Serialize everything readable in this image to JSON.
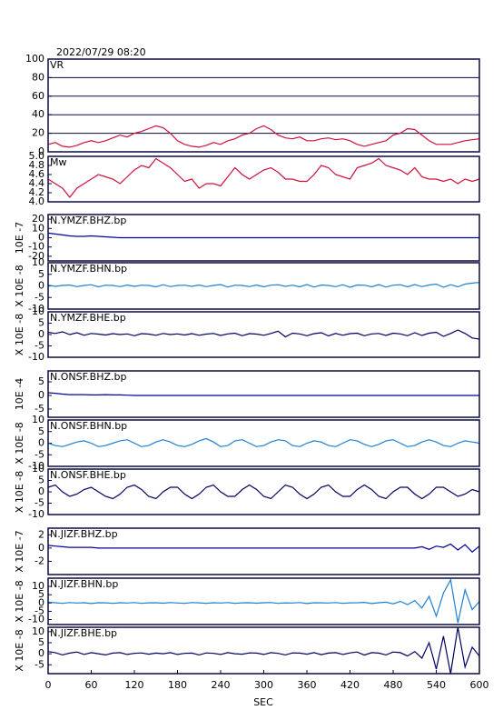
{
  "chart_data": {
    "type": "line",
    "title": "2022/07/29 08:20",
    "xlabel": "SEC",
    "xlim": [
      0,
      600
    ],
    "xticks": [
      0,
      60,
      120,
      180,
      240,
      300,
      360,
      420,
      480,
      540,
      600
    ],
    "x": [
      0,
      10,
      20,
      30,
      40,
      50,
      60,
      70,
      80,
      90,
      100,
      110,
      120,
      130,
      140,
      150,
      160,
      170,
      180,
      190,
      200,
      210,
      220,
      230,
      240,
      250,
      260,
      270,
      280,
      290,
      300,
      310,
      320,
      330,
      340,
      350,
      360,
      370,
      380,
      390,
      400,
      410,
      420,
      430,
      440,
      450,
      460,
      470,
      480,
      490,
      500,
      510,
      520,
      530,
      540,
      550,
      560,
      570,
      580,
      590,
      600
    ],
    "panels": [
      {
        "name": "VR",
        "color": "#d0103a",
        "grid": true,
        "ylim": [
          0,
          100
        ],
        "yticks": [
          0,
          20,
          40,
          60,
          80,
          100
        ],
        "values": [
          8,
          10,
          6,
          5,
          7,
          10,
          12,
          10,
          12,
          15,
          18,
          16,
          20,
          22,
          25,
          28,
          26,
          20,
          12,
          8,
          6,
          5,
          7,
          10,
          8,
          12,
          14,
          18,
          20,
          25,
          28,
          24,
          18,
          15,
          14,
          16,
          12,
          12,
          14,
          15,
          13,
          14,
          12,
          8,
          6,
          8,
          10,
          12,
          18,
          20,
          25,
          24,
          18,
          12,
          8,
          8,
          8,
          10,
          12,
          13,
          14
        ]
      },
      {
        "name": "Mw",
        "color": "#d0103a",
        "grid": false,
        "ylim": [
          4.0,
          5.0
        ],
        "yticks": [
          {
            "value": 4,
            "label": "4.0"
          },
          4.2,
          4.4,
          4.6,
          4.8,
          {
            "value": 5,
            "label": "5.0"
          }
        ],
        "values": [
          4.5,
          4.4,
          4.3,
          4.1,
          4.3,
          4.4,
          4.5,
          4.6,
          4.55,
          4.5,
          4.4,
          4.55,
          4.7,
          4.8,
          4.75,
          4.95,
          4.85,
          4.75,
          4.6,
          4.45,
          4.5,
          4.3,
          4.4,
          4.4,
          4.35,
          4.55,
          4.75,
          4.6,
          4.5,
          4.6,
          4.7,
          4.75,
          4.65,
          4.5,
          4.5,
          4.45,
          4.45,
          4.6,
          4.8,
          4.75,
          4.6,
          4.55,
          4.5,
          4.75,
          4.8,
          4.85,
          4.95,
          4.8,
          4.75,
          4.7,
          4.6,
          4.75,
          4.55,
          4.5,
          4.5,
          4.45,
          4.5,
          4.4,
          4.5,
          4.45,
          4.5
        ]
      },
      {
        "name": "N.YMZF.BHZ.bp",
        "ylabel": "10E -7",
        "color": "#0000a0",
        "ylim": [
          -25,
          25
        ],
        "yticks": [
          20,
          10,
          0,
          -10,
          -20
        ],
        "values": [
          5,
          4,
          3,
          2,
          1.5,
          1.5,
          2,
          1.5,
          1,
          0.5,
          0,
          0,
          0,
          0,
          0,
          0,
          0,
          0,
          0,
          0,
          0,
          0,
          0,
          0,
          0,
          0,
          0,
          0,
          0,
          0,
          0,
          0,
          0,
          0,
          0,
          0,
          0,
          0,
          0,
          0,
          0,
          0,
          0,
          0,
          0,
          0,
          0,
          0,
          0,
          0,
          0,
          0,
          0,
          0,
          0,
          0,
          0,
          0,
          0,
          0,
          0
        ]
      },
      {
        "name": "N.YMZF.BHN.bp",
        "ylabel": "X 10E -8",
        "color": "#1f7fd0",
        "ylim": [
          -10,
          10
        ],
        "yticks": [
          10,
          5,
          0,
          -5,
          -10
        ],
        "values": [
          0.3,
          -0.2,
          0.2,
          0.4,
          -0.3,
          0.2,
          0.5,
          -0.4,
          0.3,
          0.2,
          -0.3,
          0.4,
          -0.2,
          0.3,
          0.2,
          -0.4,
          0.5,
          -0.3,
          0.2,
          0.3,
          -0.2,
          0.4,
          -0.3,
          0.2,
          0.6,
          -0.5,
          0.3,
          0.2,
          -0.3,
          0.4,
          -0.4,
          0.3,
          0.5,
          -0.2,
          0.3,
          -0.4,
          0.6,
          -0.5,
          0.4,
          0.2,
          -0.3,
          0.5,
          -0.6,
          0.4,
          0.3,
          -0.4,
          0.6,
          -0.5,
          0.3,
          0.5,
          -0.4,
          0.6,
          -0.3,
          0.4,
          0.8,
          -0.6,
          0.5,
          -0.4,
          0.8,
          1.2,
          1.5
        ]
      },
      {
        "name": "N.YMZF.BHE.bp",
        "ylabel": "X 10E -8",
        "color": "#000060",
        "ylim": [
          -10,
          10
        ],
        "yticks": [
          10,
          5,
          0,
          -5,
          -10
        ],
        "values": [
          1,
          0.5,
          1.2,
          0,
          0.8,
          -0.3,
          0.5,
          0.2,
          -0.2,
          0.4,
          0,
          0.3,
          -0.5,
          0.4,
          0.2,
          -0.3,
          0.5,
          0,
          0.3,
          -0.2,
          0.4,
          -0.3,
          0.2,
          0.5,
          -0.4,
          0.3,
          0.6,
          -0.5,
          0.4,
          0.2,
          -0.3,
          0.5,
          1.5,
          -1,
          0.6,
          0.3,
          -0.5,
          0.4,
          0.8,
          -0.6,
          0.5,
          -0.3,
          0.4,
          0.6,
          -0.5,
          0.3,
          0.5,
          -0.4,
          0.6,
          0.3,
          -0.5,
          0.8,
          -0.4,
          0.6,
          1,
          -0.8,
          0.5,
          2,
          0.5,
          -1.5,
          -2
        ]
      },
      {
        "name": "N.ONSF.BHZ.bp",
        "ylabel": "10E -4",
        "color": "#0000a0",
        "ylim": [
          -8,
          9
        ],
        "yticks": [
          5,
          0,
          -5
        ],
        "values": [
          1,
          0.8,
          0.5,
          0.3,
          0.3,
          0.3,
          0.2,
          0.2,
          0.3,
          0.2,
          0.2,
          0.1,
          0,
          0,
          0,
          0,
          0,
          0,
          0,
          0,
          0,
          0,
          0,
          0,
          0,
          0,
          0,
          0,
          0,
          0,
          0,
          0,
          0,
          0,
          0,
          0,
          0,
          0,
          0,
          0,
          0,
          0,
          0,
          0,
          0,
          0,
          0,
          0,
          0,
          0,
          0,
          0,
          0,
          0,
          0,
          0,
          0,
          0,
          0,
          0,
          0
        ]
      },
      {
        "name": "N.ONSF.BHN.bp",
        "ylabel": "X 10E -8",
        "color": "#1f7fd0",
        "ylim": [
          -10,
          10
        ],
        "yticks": [
          10,
          5,
          0,
          -5,
          -10
        ],
        "values": [
          0,
          -1,
          -1.5,
          -0.5,
          0.5,
          1,
          0,
          -1.5,
          -1,
          0,
          1,
          1.5,
          0,
          -1.5,
          -1,
          0.5,
          1.5,
          0.5,
          -1,
          -1.5,
          -0.5,
          1,
          2,
          0.5,
          -1.5,
          -1,
          1,
          1.5,
          0,
          -1.5,
          -1,
          0.5,
          1.5,
          1,
          -1,
          -1.5,
          0,
          1,
          0.5,
          -1,
          -1.5,
          0,
          1.5,
          1,
          -0.5,
          -1.5,
          -0.5,
          1,
          1.5,
          0,
          -1.5,
          -1,
          0.5,
          1.5,
          0.5,
          -1,
          -1.5,
          0,
          1,
          0.5,
          0
        ]
      },
      {
        "name": "N.ONSF.BHE.bp",
        "ylabel": "X 10E -8",
        "color": "#000060",
        "ylim": [
          -10,
          10
        ],
        "yticks": [
          10,
          5,
          0,
          -5,
          -10
        ],
        "values": [
          2,
          3,
          0,
          -2,
          -1,
          1,
          2,
          0,
          -2,
          -3,
          -1,
          2,
          3,
          1,
          -2,
          -3,
          0,
          2,
          2,
          -1,
          -3,
          -1,
          2,
          3,
          0,
          -2,
          -2,
          1,
          3,
          1,
          -2,
          -3,
          0,
          3,
          2,
          -1,
          -3,
          -1,
          2,
          3,
          0,
          -2,
          -2,
          1,
          3,
          1,
          -2,
          -3,
          0,
          2,
          2,
          -1,
          -3,
          -1,
          2,
          2,
          0,
          -2,
          -1,
          1,
          0
        ]
      },
      {
        "name": "N.JIZF.BHZ.bp",
        "ylabel": "X 10E -7",
        "color": "#0000a0",
        "ylim": [
          -4,
          3
        ],
        "yticks": [
          2,
          0,
          -2
        ],
        "values": [
          0.4,
          0.3,
          0.2,
          0.1,
          0.1,
          0.1,
          0.1,
          0,
          0,
          0,
          0,
          0,
          0,
          0,
          0,
          0,
          0,
          0,
          0,
          0,
          0,
          0,
          0,
          0,
          0,
          0,
          0,
          0,
          0,
          0,
          0,
          0,
          0,
          0,
          0,
          0,
          0,
          0,
          0,
          0,
          0,
          0,
          0,
          0,
          0,
          0,
          0,
          0,
          0,
          0,
          0,
          0,
          0.2,
          -0.2,
          0.3,
          0.1,
          0.6,
          -0.3,
          0.5,
          -0.6,
          0.3
        ]
      },
      {
        "name": "N.JIZF.BHN.bp",
        "ylabel": "X 10E -8",
        "color": "#1f7fd0",
        "ylim": [
          -13,
          15
        ],
        "yticks": [
          10,
          5,
          0,
          -5,
          -10
        ],
        "values": [
          0.5,
          0.2,
          -0.2,
          0.3,
          0,
          0.2,
          -0.3,
          0.2,
          0.1,
          -0.2,
          0.2,
          0,
          0.3,
          -0.2,
          0.1,
          0.2,
          -0.1,
          0.3,
          0,
          -0.2,
          0.3,
          0.1,
          -0.2,
          0.2,
          0,
          0.3,
          -0.2,
          0.1,
          0.2,
          -0.1,
          0.2,
          0.3,
          -0.2,
          0.1,
          0,
          0.3,
          -0.3,
          0.2,
          0.1,
          0,
          0.3,
          -0.2,
          0.1,
          0.2,
          0.4,
          -0.3,
          0.2,
          0.5,
          -0.5,
          1,
          -1,
          1.5,
          -3,
          4,
          -8,
          6,
          14,
          -12,
          8,
          -4,
          1
        ]
      },
      {
        "name": "N.JIZF.BHE.bp",
        "ylabel": "X 10E -8",
        "color": "#000060",
        "ylim": [
          -9,
          12
        ],
        "yticks": [
          10,
          5,
          0,
          -5
        ],
        "values": [
          1,
          0.5,
          -0.5,
          0.3,
          0.8,
          -0.3,
          0.5,
          0,
          -0.5,
          0.3,
          0.5,
          -0.3,
          0.2,
          0.4,
          -0.2,
          0.3,
          0,
          0.5,
          -0.3,
          0.2,
          0.3,
          -0.5,
          0.4,
          0.2,
          -0.3,
          0.5,
          0,
          -0.2,
          0.4,
          0.3,
          -0.3,
          0.5,
          0.2,
          -0.5,
          0.4,
          0.3,
          -0.2,
          0.5,
          -0.4,
          0.3,
          0.5,
          -0.3,
          0.4,
          0.8,
          -0.6,
          0.5,
          0.3,
          -0.5,
          0.8,
          0.5,
          -1,
          1,
          -2,
          5,
          -7,
          8,
          -9,
          12,
          -6,
          3,
          -1
        ]
      }
    ]
  }
}
